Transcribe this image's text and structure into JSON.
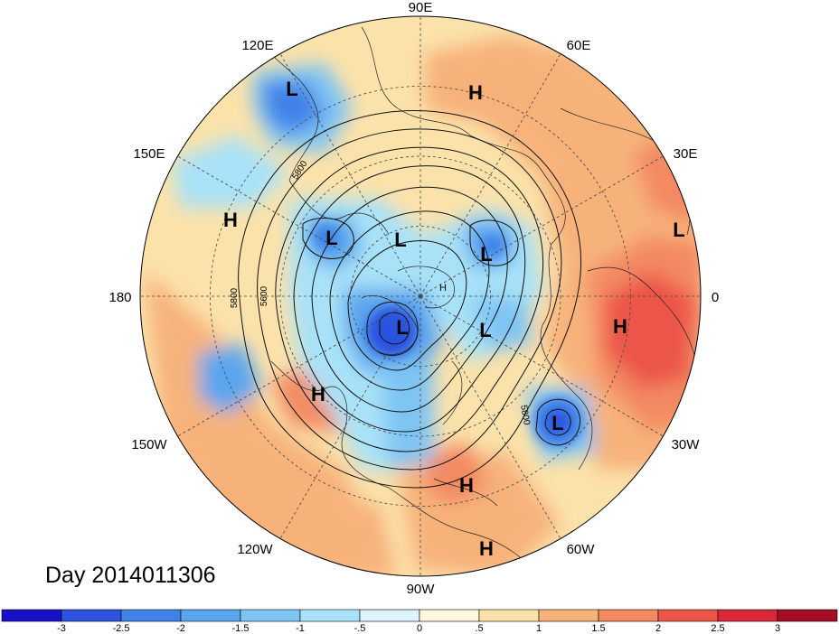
{
  "title": "Day 2014011306",
  "longitude_labels": [
    "90E",
    "60E",
    "30E",
    "0",
    "30W",
    "60W",
    "90W",
    "120W",
    "150W",
    "180",
    "150E",
    "120E"
  ],
  "contour_labels": [
    "5800",
    "5800",
    "5600",
    "5800"
  ],
  "pressure_centers": [
    "L",
    "H",
    "H",
    "L",
    "L",
    "L",
    "L",
    "H",
    "L",
    "H",
    "L",
    "H",
    "L",
    "H",
    "H"
  ],
  "colorbar": {
    "ticks": [
      "-3",
      "-2.5",
      "-2",
      "-1.5",
      "-1",
      "-.5",
      "0",
      ".5",
      "1",
      "1.5",
      "2",
      "2.5",
      "3"
    ],
    "colors": [
      "#1a0fc8",
      "#2b52e0",
      "#3f82e8",
      "#5aa6ee",
      "#7ec4f4",
      "#a9e2f8",
      "#dff3fb",
      "#fdf7dc",
      "#fbe2aa",
      "#f7b27a",
      "#f38a62",
      "#ec5548",
      "#d8283a",
      "#a60d22"
    ]
  }
}
